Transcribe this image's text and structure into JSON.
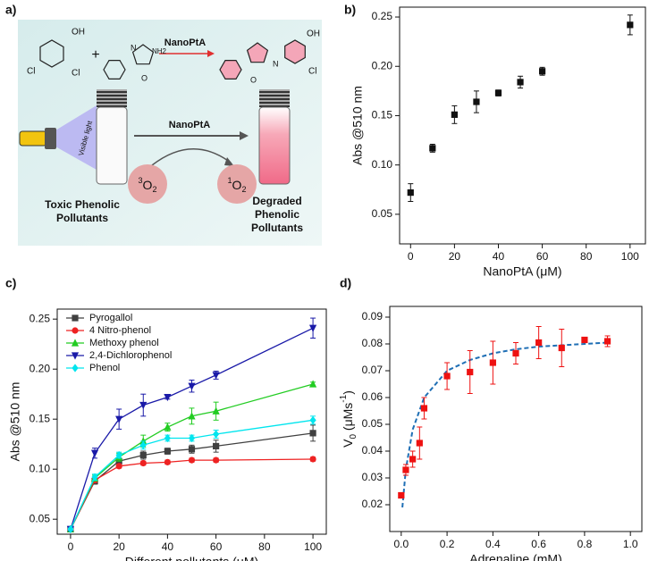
{
  "scheme": {
    "label": "a)",
    "catalyst_top": "NanoPtA",
    "plus": "+",
    "reactant_atoms": [
      "OH",
      "Cl",
      "Cl"
    ],
    "aap_atoms": [
      "N",
      "NH2",
      "O"
    ],
    "product_atoms": [
      "N",
      "O",
      "OH",
      "Cl"
    ],
    "light": "Visible light",
    "catalyst_bottom": "NanoPtA",
    "triplet": [
      "3",
      "O",
      "2"
    ],
    "singlet": [
      "1",
      "O",
      "2"
    ],
    "toxic": [
      "Toxic Phenolic",
      "Pollutants"
    ],
    "degraded": [
      "Degraded",
      "Phenolic",
      "Pollutants"
    ]
  },
  "chart_data": [
    {
      "type": "scatter",
      "label": "b)",
      "xlabel": "NanoPtA (μM)",
      "ylabel": "Abs @510 nm",
      "xlim": [
        -5,
        107
      ],
      "xticks": [
        0,
        20,
        40,
        60,
        80,
        100
      ],
      "ylim": [
        0.02,
        0.26
      ],
      "yticks": [
        0.05,
        {
          "value": 0.1,
          "label": "0.10"
        },
        0.15,
        {
          "value": 0.2,
          "label": "0.20"
        },
        0.25
      ],
      "series": [
        {
          "marker": "square",
          "color": "#111111",
          "x": [
            0,
            10,
            20,
            30,
            40,
            50,
            60,
            100
          ],
          "values": [
            0.072,
            0.117,
            0.151,
            0.164,
            0.173,
            0.184,
            0.195,
            0.242
          ],
          "errors": [
            0.009,
            0.004,
            0.009,
            0.011,
            0.003,
            0.006,
            0.004,
            0.01
          ]
        }
      ]
    },
    {
      "type": "line",
      "label": "c)",
      "xlabel": "Different pollutants (μM)",
      "ylabel": "Abs @510 nm",
      "legend": "upper left",
      "xlim": [
        -5.5,
        105.5
      ],
      "xticks": [
        0,
        20,
        40,
        60,
        80,
        100
      ],
      "ylim": [
        0.035,
        0.26
      ],
      "yticks": [
        0.05,
        {
          "value": 0.1,
          "label": "0.10"
        },
        0.15,
        {
          "value": 0.2,
          "label": "0.20"
        },
        0.25
      ],
      "x": [
        0,
        10,
        20,
        30,
        40,
        50,
        60,
        100
      ],
      "series": [
        {
          "name": "Pyrogallol",
          "color": "#404040",
          "marker": "square",
          "values": [
            0.04,
            0.088,
            0.108,
            0.114,
            0.118,
            0.12,
            0.123,
            0.136
          ],
          "errors": [
            0.001,
            0.003,
            0.003,
            0.004,
            0.003,
            0.004,
            0.006,
            0.008
          ]
        },
        {
          "name": "4 Nitro-phenol",
          "color": "#ee2222",
          "marker": "circle",
          "values": [
            0.04,
            0.089,
            0.103,
            0.106,
            0.107,
            0.109,
            0.109,
            0.11
          ],
          "errors": [
            0.001,
            0.002,
            0.002,
            0.002,
            0.002,
            0.002,
            0.002,
            0.002
          ]
        },
        {
          "name": "Methoxy phenol",
          "color": "#22cc22",
          "marker": "triangle-up",
          "values": [
            0.04,
            0.091,
            0.112,
            0.128,
            0.142,
            0.153,
            0.158,
            0.185
          ],
          "errors": [
            0.001,
            0.003,
            0.004,
            0.006,
            0.004,
            0.008,
            0.009,
            0.002
          ]
        },
        {
          "name": "2,4-Dichlorophenol",
          "color": "#1a1aa8",
          "marker": "triangle-down",
          "values": [
            0.04,
            0.116,
            0.15,
            0.164,
            0.172,
            0.183,
            0.194,
            0.241
          ],
          "errors": [
            0.002,
            0.005,
            0.01,
            0.011,
            0.002,
            0.006,
            0.004,
            0.01
          ]
        },
        {
          "name": "Phenol",
          "color": "#00e5ee",
          "marker": "diamond",
          "values": [
            0.04,
            0.092,
            0.114,
            0.124,
            0.131,
            0.131,
            0.135,
            0.149
          ],
          "errors": [
            0.001,
            0.003,
            0.003,
            0.004,
            0.003,
            0.003,
            0.004,
            0.004
          ]
        }
      ]
    },
    {
      "type": "scatter",
      "label": "d)",
      "xlabel": "Adrenaline (mM)",
      "ylabel": [
        "V",
        "0",
        " (μMs",
        "-1",
        ")"
      ],
      "xlim": [
        -0.05,
        1.05
      ],
      "xticks": [
        {
          "value": 0,
          "label": "0.0"
        },
        0.2,
        0.4,
        0.6,
        0.8,
        {
          "value": 1,
          "label": "1.0"
        }
      ],
      "ylim": [
        0.01,
        0.094
      ],
      "yticks": [
        0.02,
        0.03,
        0.04,
        0.05,
        0.06,
        0.07,
        0.08,
        0.09
      ],
      "series": [
        {
          "marker": "square",
          "color": "#ee1111",
          "x": [
            0,
            0.02,
            0.05,
            0.08,
            0.1,
            0.2,
            0.3,
            0.4,
            0.5,
            0.6,
            0.7,
            0.8,
            0.9
          ],
          "values": [
            0.0235,
            0.033,
            0.037,
            0.043,
            0.056,
            0.068,
            0.0695,
            0.073,
            0.0765,
            0.0805,
            0.0785,
            0.0815,
            0.081
          ],
          "errors": [
            0.0008,
            0.002,
            0.003,
            0.006,
            0.004,
            0.005,
            0.008,
            0.008,
            0.004,
            0.006,
            0.007,
            0.001,
            0.002
          ]
        }
      ],
      "fit": {
        "color": "#1f6fb5",
        "x": [
          0.005,
          0.02,
          0.05,
          0.1,
          0.2,
          0.3,
          0.4,
          0.5,
          0.6,
          0.7,
          0.8,
          0.9
        ],
        "values": [
          0.019,
          0.033,
          0.048,
          0.06,
          0.07,
          0.074,
          0.0765,
          0.078,
          0.079,
          0.0795,
          0.08,
          0.0805
        ]
      }
    }
  ]
}
